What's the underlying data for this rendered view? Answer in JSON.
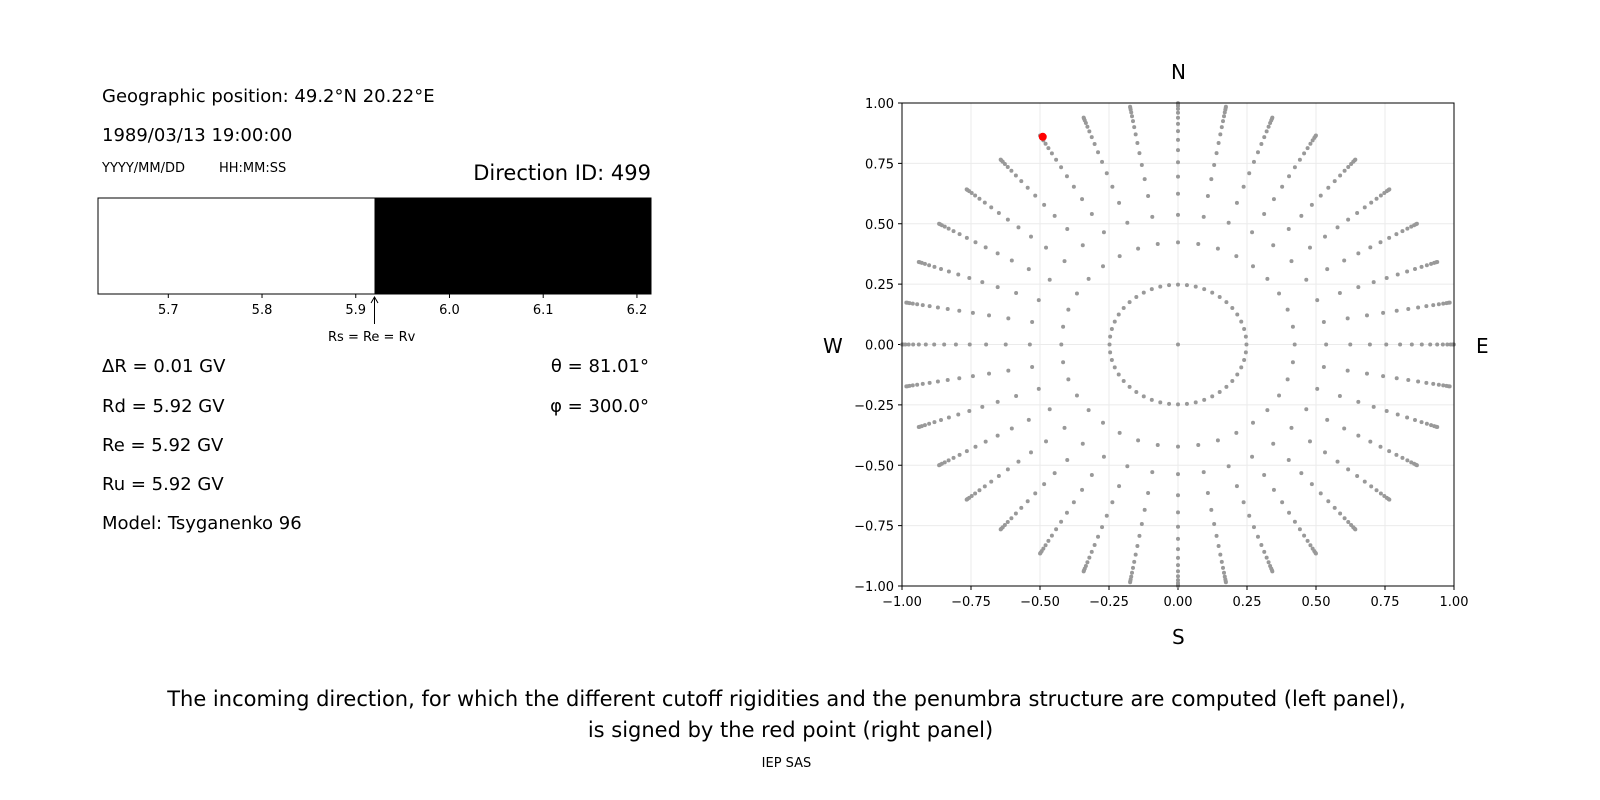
{
  "left_panel": {
    "geo_position": "Geographic position: 49.2°N 20.22°E",
    "datetime": "1989/03/13 19:00:00",
    "date_format": "YYYY/MM/DD",
    "time_format": "HH:MM:SS",
    "direction_id": "Direction ID: 499",
    "delta_r": "ΔR = 0.01 GV",
    "rd": "Rd = 5.92 GV",
    "re": "Re = 5.92 GV",
    "ru": "Ru = 5.92 GV",
    "model": "Model: Tsyganenko 96",
    "theta": "θ = 81.01°",
    "phi": "φ = 300.0°"
  },
  "chart_data": [
    {
      "type": "bar",
      "description_role": "penumbra",
      "xlim": [
        5.625,
        6.215
      ],
      "xticks": [
        "5.7",
        "5.8",
        "5.9",
        "6.0",
        "6.1",
        "6.2"
      ],
      "segments": [
        {
          "from": 5.625,
          "to": 5.92,
          "color": "#ffffff"
        },
        {
          "from": 5.92,
          "to": 6.215,
          "color": "#000000"
        }
      ],
      "annotation": {
        "x": 5.92,
        "text": "Rs = Re = Rv"
      }
    },
    {
      "type": "scatter",
      "xlim": [
        -1,
        1
      ],
      "ylim": [
        -1,
        1
      ],
      "xticks": [
        "−1.00",
        "−0.75",
        "−0.50",
        "−0.25",
        "0.00",
        "0.25",
        "0.50",
        "0.75",
        "1.00"
      ],
      "yticks": [
        "−1.00",
        "−0.75",
        "−0.50",
        "−0.25",
        "0.00",
        "0.25",
        "0.50",
        "0.75",
        "1.00"
      ],
      "grid": true,
      "compass": {
        "n": "N",
        "s": "S",
        "w": "W",
        "e": "E"
      },
      "grid_points": {
        "color": "#999999",
        "rings": 16,
        "rays": 36,
        "inner_ring_points": 48
      },
      "highlight": {
        "x": -0.49,
        "y": 0.86,
        "color": "#ff0000"
      }
    }
  ],
  "caption": {
    "line1": "The incoming direction, for which the different cutoff rigidities and the penumbra structure are computed (left panel),",
    "line2": "is signed by the red point (right panel)"
  },
  "footer": "IEP SAS"
}
